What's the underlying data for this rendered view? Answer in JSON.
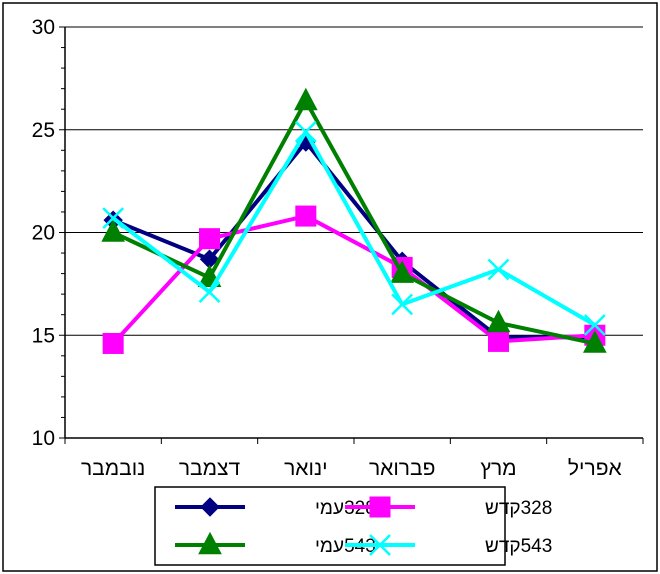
{
  "chart_data": {
    "type": "line",
    "title": "",
    "xlabel": "",
    "ylabel": "",
    "categories": [
      "נובמבר",
      "דצמבר",
      "ינואר",
      "פברואר",
      "מרץ",
      "אפריל"
    ],
    "ylim": [
      10,
      30
    ],
    "yticks": [
      10,
      15,
      20,
      25,
      30
    ],
    "grid": true,
    "legend_position": "bottom",
    "series": [
      {
        "name": "328עמי",
        "color": "#000080",
        "marker": "diamond",
        "values": [
          20.6,
          18.7,
          24.4,
          18.6,
          14.9,
          14.9
        ]
      },
      {
        "name": "328קדש",
        "color": "#ff00ff",
        "marker": "square",
        "values": [
          14.6,
          19.7,
          20.8,
          18.3,
          14.7,
          15.0
        ]
      },
      {
        "name": "543עמי",
        "color": "#008000",
        "marker": "triangle",
        "values": [
          20.0,
          17.8,
          26.4,
          18.0,
          15.6,
          14.6
        ]
      },
      {
        "name": "543קדש",
        "color": "#00ffff",
        "marker": "x",
        "values": [
          20.7,
          17.1,
          24.9,
          16.5,
          18.2,
          15.5
        ]
      }
    ]
  }
}
